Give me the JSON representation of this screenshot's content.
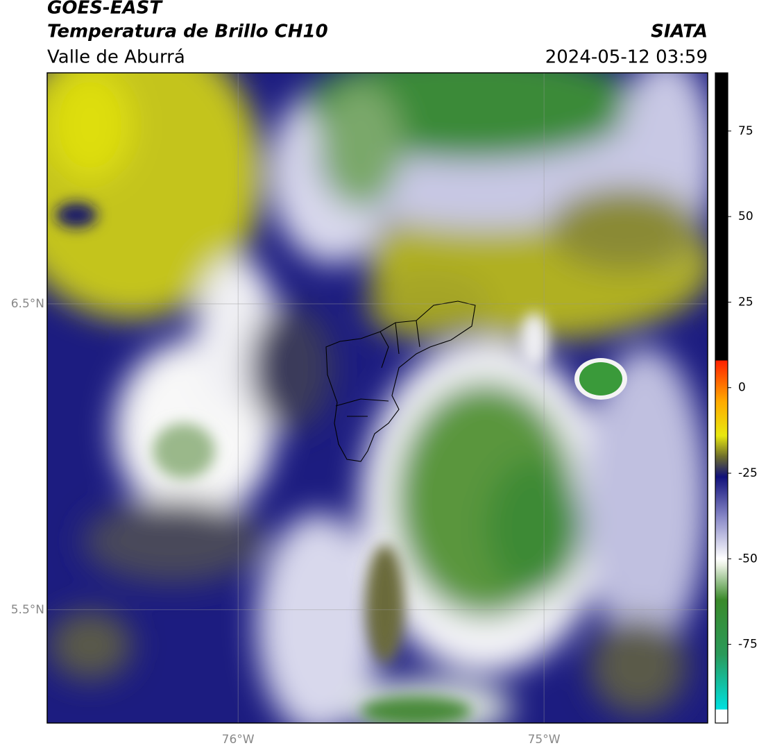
{
  "header": {
    "source": "GOES-EAST",
    "product": "Temperatura de Brillo CH10",
    "region": "Valle de Aburrá",
    "organization": "SIATA",
    "datetime": "2024-05-12 03:59"
  },
  "map": {
    "lon_lim": [
      -76.624,
      -74.465
    ],
    "lat_lim": [
      5.13,
      7.255
    ],
    "lat_ticks": [
      {
        "value": 6.5,
        "label": "6.5°N"
      },
      {
        "value": 5.5,
        "label": "5.5°N"
      }
    ],
    "lon_ticks": [
      {
        "value": -76,
        "label": "76°W"
      },
      {
        "value": -75,
        "label": "75°W"
      }
    ],
    "grid": true
  },
  "colorbar": {
    "lim": [
      -98,
      92
    ],
    "ticks": [
      75,
      50,
      25,
      0,
      -25,
      -50,
      -75
    ],
    "stops": [
      {
        "value": -98,
        "color": "#ffffff"
      },
      {
        "value": -94,
        "color": "#ffffff"
      },
      {
        "value": -94,
        "color": "#00e0e0"
      },
      {
        "value": -78,
        "color": "#2a9a5a"
      },
      {
        "value": -62,
        "color": "#3a8a2a"
      },
      {
        "value": -52,
        "color": "#e8f0e0"
      },
      {
        "value": -50,
        "color": "#ffffff"
      },
      {
        "value": -38,
        "color": "#8a8ac8"
      },
      {
        "value": -26,
        "color": "#10107a"
      },
      {
        "value": -20,
        "color": "#70702a"
      },
      {
        "value": -14,
        "color": "#e8e810"
      },
      {
        "value": -4,
        "color": "#ffaa00"
      },
      {
        "value": 8,
        "color": "#ff2000"
      },
      {
        "value": 8,
        "color": "#000000"
      },
      {
        "value": 92,
        "color": "#000000"
      }
    ]
  }
}
